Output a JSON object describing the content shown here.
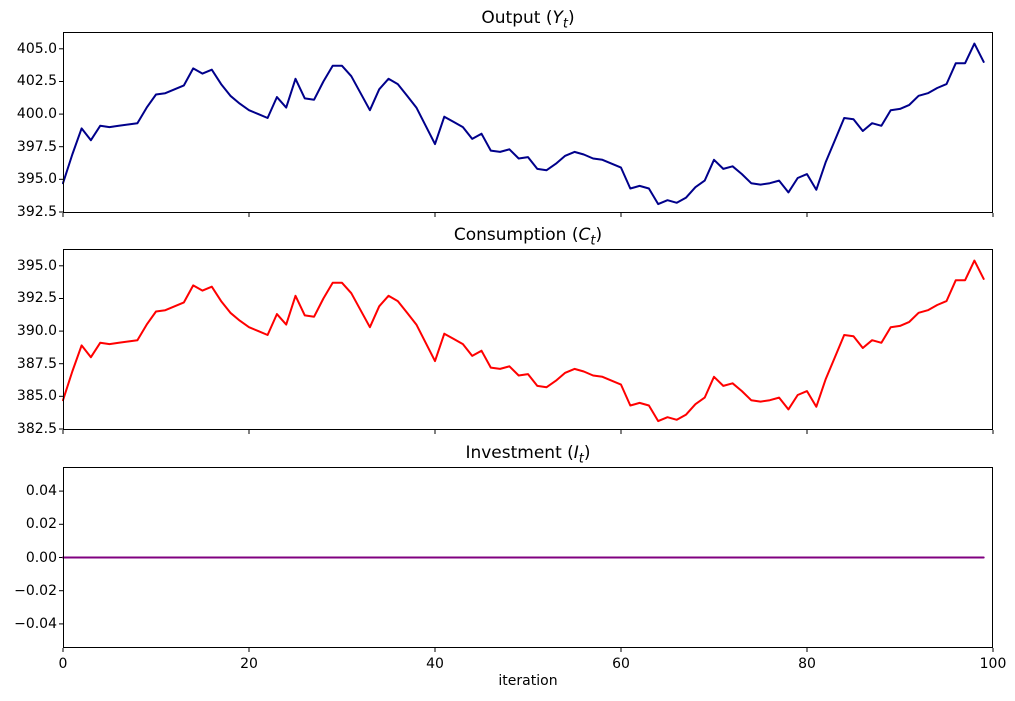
{
  "figure": {
    "background": "#ffffff",
    "xlabel": "iteration",
    "xlim": [
      0,
      100
    ],
    "xticks": [
      0,
      20,
      40,
      60,
      80,
      100
    ],
    "xtick_labels": [
      "0",
      "20",
      "40",
      "60",
      "80",
      "100"
    ]
  },
  "chart_data": [
    {
      "id": "output",
      "type": "line",
      "title_text": "Output (Yₜ)",
      "title_parts": {
        "prefix": "Output (",
        "variable": "Y",
        "subscript": "t",
        "suffix": ")"
      },
      "series_name": "Output",
      "color": "#00008B",
      "x_start": 0,
      "x_step": 1,
      "ylim": [
        392.42,
        406.29
      ],
      "ytick_values": [
        392.5,
        395.0,
        397.5,
        400.0,
        402.5,
        405.0
      ],
      "ytick_labels": [
        "392.5",
        "395.0",
        "397.5",
        "400.0",
        "402.5",
        "405.0"
      ],
      "show_x_tick_labels": false,
      "values": [
        394.7,
        396.9,
        398.9,
        398.0,
        399.1,
        399.0,
        399.1,
        399.2,
        399.3,
        400.5,
        401.5,
        401.6,
        401.9,
        402.2,
        403.5,
        403.1,
        403.4,
        402.3,
        401.4,
        400.8,
        400.3,
        400.0,
        399.7,
        401.3,
        400.5,
        402.7,
        401.2,
        401.1,
        402.5,
        403.7,
        403.7,
        402.9,
        401.6,
        400.3,
        401.9,
        402.7,
        402.3,
        401.4,
        400.5,
        399.1,
        397.7,
        399.8,
        399.4,
        399.0,
        398.1,
        398.5,
        397.2,
        397.1,
        397.3,
        396.6,
        396.7,
        395.8,
        395.7,
        396.2,
        396.8,
        397.1,
        396.9,
        396.6,
        396.5,
        396.2,
        395.9,
        394.3,
        394.5,
        394.3,
        393.1,
        393.4,
        393.2,
        393.6,
        394.4,
        394.9,
        396.5,
        395.8,
        396.0,
        395.4,
        394.7,
        394.6,
        394.7,
        394.9,
        394.0,
        395.1,
        395.4,
        394.2,
        396.3,
        398.0,
        399.7,
        399.6,
        398.7,
        399.3,
        399.1,
        400.3,
        400.4,
        400.7,
        401.4,
        401.6,
        402.0,
        402.3,
        403.9,
        403.9,
        405.4,
        404.0
      ]
    },
    {
      "id": "consumption",
      "type": "line",
      "title_text": "Consumption (Cₜ)",
      "title_parts": {
        "prefix": "Consumption (",
        "variable": "C",
        "subscript": "t",
        "suffix": ")"
      },
      "series_name": "Consumption",
      "color": "#FF0000",
      "x_start": 0,
      "x_step": 1,
      "ylim": [
        382.42,
        396.29
      ],
      "ytick_values": [
        382.5,
        385.0,
        387.5,
        390.0,
        392.5,
        395.0
      ],
      "ytick_labels": [
        "382.5",
        "385.0",
        "387.5",
        "390.0",
        "392.5",
        "395.0"
      ],
      "show_x_tick_labels": false,
      "values": [
        384.7,
        386.9,
        388.9,
        388.0,
        389.1,
        389.0,
        389.1,
        389.2,
        389.3,
        390.5,
        391.5,
        391.6,
        391.9,
        392.2,
        393.5,
        393.1,
        393.4,
        392.3,
        391.4,
        390.8,
        390.3,
        390.0,
        389.7,
        391.3,
        390.5,
        392.7,
        391.2,
        391.1,
        392.5,
        393.7,
        393.7,
        392.9,
        391.6,
        390.3,
        391.9,
        392.7,
        392.3,
        391.4,
        390.5,
        389.1,
        387.7,
        389.8,
        389.4,
        389.0,
        388.1,
        388.5,
        387.2,
        387.1,
        387.3,
        386.6,
        386.7,
        385.8,
        385.7,
        386.2,
        386.8,
        387.1,
        386.9,
        386.6,
        386.5,
        386.2,
        385.9,
        384.3,
        384.5,
        384.3,
        383.1,
        383.4,
        383.2,
        383.6,
        384.4,
        384.9,
        386.5,
        385.8,
        386.0,
        385.4,
        384.7,
        384.6,
        384.7,
        384.9,
        384.0,
        385.1,
        385.4,
        384.2,
        386.3,
        388.0,
        389.7,
        389.6,
        388.7,
        389.3,
        389.1,
        390.3,
        390.4,
        390.7,
        391.4,
        391.6,
        392.0,
        392.3,
        393.9,
        393.9,
        395.4,
        394.0
      ]
    },
    {
      "id": "investment",
      "type": "line",
      "title_text": "Investment (Iₜ)",
      "title_parts": {
        "prefix": "Investment (",
        "variable": "I",
        "subscript": "t",
        "suffix": ")"
      },
      "series_name": "Investment",
      "color": "#800080",
      "x_start": 0,
      "x_step": 1,
      "ylim": [
        -0.0545,
        0.0545
      ],
      "ytick_values": [
        -0.04,
        -0.02,
        0.0,
        0.02,
        0.04
      ],
      "ytick_labels": [
        "−0.04",
        "−0.02",
        "0.00",
        "0.02",
        "0.04"
      ],
      "show_x_tick_labels": true,
      "values": [
        0,
        0,
        0,
        0,
        0,
        0,
        0,
        0,
        0,
        0,
        0,
        0,
        0,
        0,
        0,
        0,
        0,
        0,
        0,
        0,
        0,
        0,
        0,
        0,
        0,
        0,
        0,
        0,
        0,
        0,
        0,
        0,
        0,
        0,
        0,
        0,
        0,
        0,
        0,
        0,
        0,
        0,
        0,
        0,
        0,
        0,
        0,
        0,
        0,
        0,
        0,
        0,
        0,
        0,
        0,
        0,
        0,
        0,
        0,
        0,
        0,
        0,
        0,
        0,
        0,
        0,
        0,
        0,
        0,
        0,
        0,
        0,
        0,
        0,
        0,
        0,
        0,
        0,
        0,
        0,
        0,
        0,
        0,
        0,
        0,
        0,
        0,
        0,
        0,
        0,
        0,
        0,
        0,
        0,
        0,
        0,
        0,
        0,
        0,
        0
      ]
    }
  ]
}
